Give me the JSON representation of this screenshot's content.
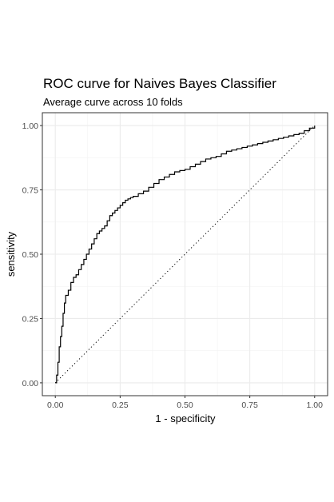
{
  "chart_data": {
    "type": "line",
    "title": "ROC curve for Naives Bayes Classifier",
    "subtitle": "Average curve across 10 folds",
    "xlabel": "1 - specificity",
    "ylabel": "sensitivity",
    "xlim": [
      -0.05,
      1.05
    ],
    "ylim": [
      -0.05,
      1.05
    ],
    "x_ticks": [
      0.0,
      0.25,
      0.5,
      0.75,
      1.0
    ],
    "x_tick_labels": [
      "0.00",
      "0.25",
      "0.50",
      "0.75",
      "1.00"
    ],
    "y_ticks": [
      0.0,
      0.25,
      0.5,
      0.75,
      1.0
    ],
    "y_tick_labels": [
      "0.00",
      "0.25",
      "0.50",
      "0.75",
      "1.00"
    ],
    "grid": true,
    "theme": "bw",
    "reference_line": {
      "x": [
        0,
        1
      ],
      "y": [
        0,
        1
      ],
      "style": "dotted"
    },
    "series": [
      {
        "color": "#000000",
        "x": [
          0.0,
          0.005,
          0.01,
          0.015,
          0.02,
          0.025,
          0.03,
          0.035,
          0.04,
          0.05,
          0.06,
          0.07,
          0.08,
          0.09,
          0.1,
          0.11,
          0.12,
          0.13,
          0.14,
          0.15,
          0.16,
          0.17,
          0.18,
          0.19,
          0.2,
          0.21,
          0.22,
          0.23,
          0.24,
          0.25,
          0.26,
          0.27,
          0.28,
          0.29,
          0.3,
          0.32,
          0.34,
          0.36,
          0.38,
          0.4,
          0.42,
          0.44,
          0.46,
          0.48,
          0.5,
          0.52,
          0.54,
          0.56,
          0.58,
          0.6,
          0.62,
          0.64,
          0.66,
          0.68,
          0.7,
          0.72,
          0.74,
          0.76,
          0.78,
          0.8,
          0.82,
          0.84,
          0.86,
          0.88,
          0.9,
          0.92,
          0.94,
          0.96,
          0.98,
          1.0
        ],
        "y": [
          0.0,
          0.03,
          0.08,
          0.14,
          0.18,
          0.22,
          0.27,
          0.31,
          0.34,
          0.36,
          0.39,
          0.41,
          0.42,
          0.44,
          0.46,
          0.48,
          0.5,
          0.52,
          0.54,
          0.56,
          0.58,
          0.59,
          0.6,
          0.61,
          0.63,
          0.65,
          0.66,
          0.67,
          0.68,
          0.69,
          0.7,
          0.71,
          0.715,
          0.72,
          0.725,
          0.735,
          0.745,
          0.76,
          0.775,
          0.79,
          0.8,
          0.81,
          0.82,
          0.825,
          0.83,
          0.84,
          0.85,
          0.86,
          0.87,
          0.875,
          0.88,
          0.89,
          0.9,
          0.905,
          0.91,
          0.915,
          0.92,
          0.925,
          0.93,
          0.935,
          0.94,
          0.945,
          0.95,
          0.955,
          0.96,
          0.965,
          0.97,
          0.98,
          0.99,
          1.0
        ]
      }
    ]
  }
}
